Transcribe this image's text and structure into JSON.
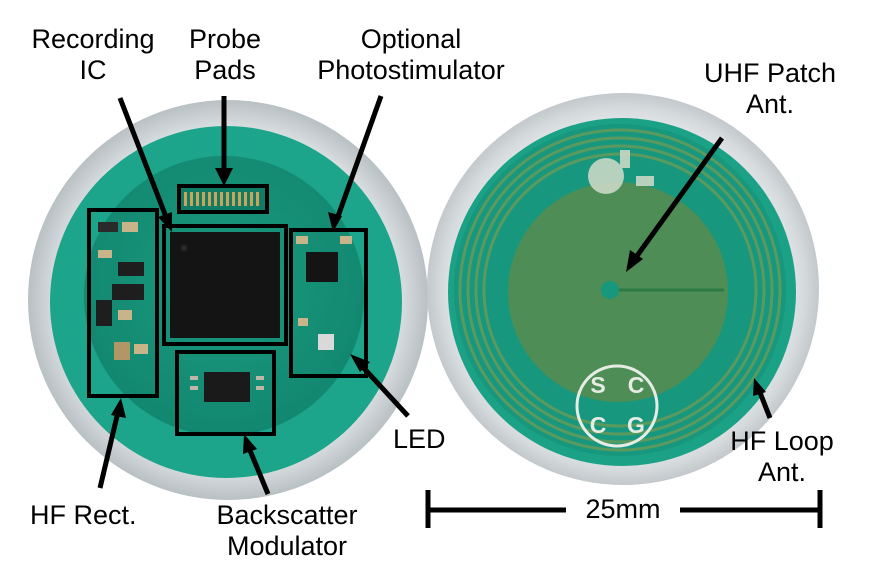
{
  "labels": {
    "recording_ic": [
      "Recording",
      "IC"
    ],
    "probe_pads": [
      "Probe",
      "Pads"
    ],
    "photostimulator": [
      "Optional",
      "Photostimulator"
    ],
    "uhf_patch": [
      "UHF Patch",
      "Ant."
    ],
    "led": "LED",
    "hf_rect": "HF Rect.",
    "backscatter": [
      "Backscatter",
      "Modulator"
    ],
    "hf_loop": [
      "HF Loop",
      "Ant."
    ],
    "scale": "25mm"
  },
  "logo_letters": [
    "S",
    "C",
    "C",
    "G"
  ],
  "colors": {
    "pcb_green": "#19a488",
    "board_green": "#16957c",
    "patch_green": "#4e8d55",
    "chip_black": "#141414",
    "rim_gray": "#dcdfe0"
  }
}
